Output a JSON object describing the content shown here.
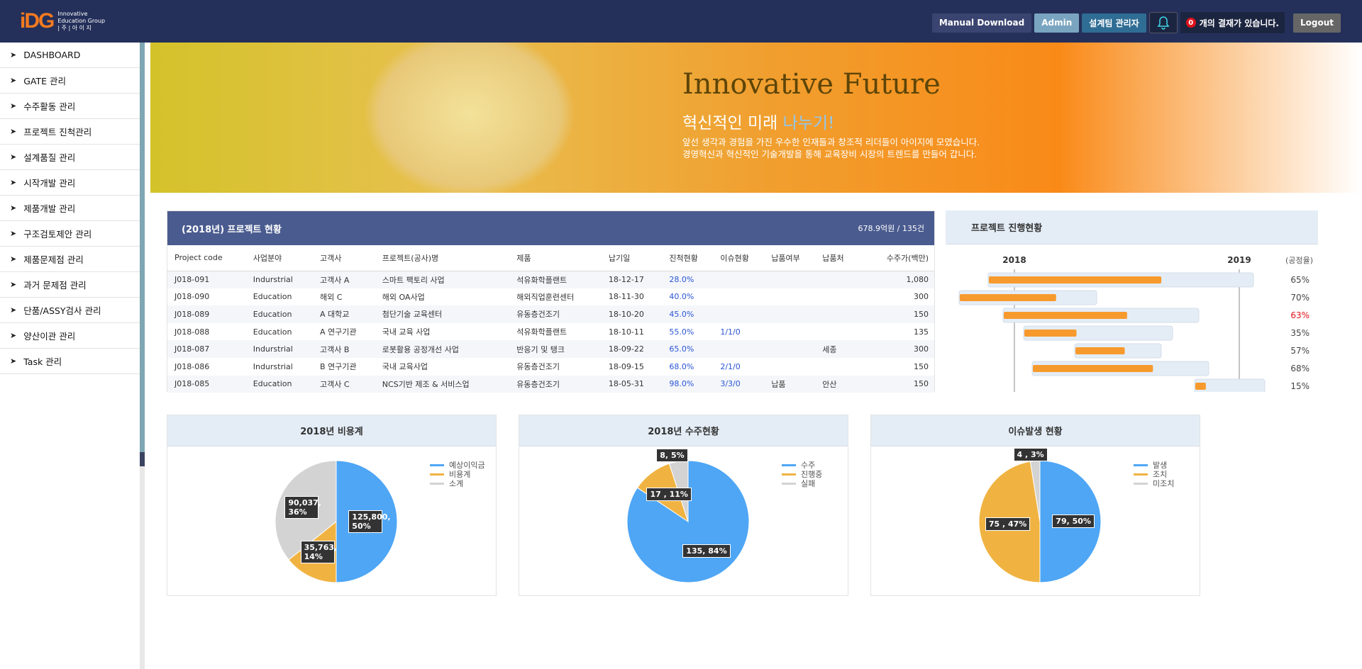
{
  "header": {
    "logo_mark": "iDG",
    "logo_line1": "Innovative",
    "logo_line2": "Education Group",
    "logo_line3": "| 주 | 아 이 지",
    "buttons": {
      "manual": "Manual Download",
      "admin": "Admin",
      "team": "설계팀 관리자",
      "logout": "Logout"
    },
    "approval_count": "0",
    "approval_text": "개의 결재가 있습니다.",
    "colors": {
      "bg": "#24305a",
      "accent": "#f47a20"
    }
  },
  "sidebar": {
    "items": [
      {
        "label": "DASHBOARD"
      },
      {
        "label": "GATE 관리"
      },
      {
        "label": "수주활동 관리"
      },
      {
        "label": "프로젝트 진척관리"
      },
      {
        "label": "설계품질 관리"
      },
      {
        "label": "시작개발 관리"
      },
      {
        "label": "제품개발 관리"
      },
      {
        "label": "구조검토제안 관리"
      },
      {
        "label": "제품문제점 관리"
      },
      {
        "label": "과거 문제점 관리"
      },
      {
        "label": "단품/ASSY검사 관리"
      },
      {
        "label": "양산이관 관리"
      },
      {
        "label": "Task 관리"
      }
    ]
  },
  "banner": {
    "title": "Innovative Future",
    "subtitle_a": "혁신적인 미래",
    "subtitle_b": "나누기!",
    "line1": "앞선 생각과 경험을 가진 우수한 인재들과 창조적 리더들이 아이지에 모였습니다.",
    "line2": "경영혁신과 혁신적인 기술개발을 통해 교육장비 시장의 트렌드를 만들어 갑니다."
  },
  "projects": {
    "title": "(2018년) 프로젝트 현황",
    "summary": "678.9억원 / 135건",
    "columns": [
      "Project code",
      "사업분야",
      "고객사",
      "프로젝트(공사)명",
      "제품",
      "납기일",
      "진척현황",
      "이슈현황",
      "납품여부",
      "납품처",
      "수주가(백만)"
    ],
    "rows": [
      [
        "J018-091",
        "Indurstrial",
        "고객사 A",
        "스마트 팩토리 사업",
        "석유화학플랜트",
        "18-12-17",
        "28.0%",
        "",
        "",
        "",
        "1,080"
      ],
      [
        "J018-090",
        "Education",
        "해외 C",
        "해외 OA사업",
        "해외직업훈련센터",
        "18-11-30",
        "40.0%",
        "",
        "",
        "",
        "300"
      ],
      [
        "J018-089",
        "Education",
        "A 대학교",
        "첨단기술 교육센터",
        "유동층건조기",
        "18-10-20",
        "45.0%",
        "",
        "",
        "",
        "150"
      ],
      [
        "J018-088",
        "Education",
        "A 연구기관",
        "국내 교육 사업",
        "석유화학플랜트",
        "18-10-11",
        "55.0%",
        "1/1/0",
        "",
        "",
        "135"
      ],
      [
        "J018-087",
        "Indurstrial",
        "고객사 B",
        "로봇활용 공정개선 사업",
        "반응기 및 탱크",
        "18-09-22",
        "65.0%",
        "",
        "",
        "세종",
        "300"
      ],
      [
        "J018-086",
        "Indurstrial",
        "B 연구기관",
        "국내 교육사업",
        "유동층건조기",
        "18-09-15",
        "68.0%",
        "2/1/0",
        "",
        "",
        "150"
      ],
      [
        "J018-085",
        "Education",
        "고객사 C",
        "NCS기반 제조 & 서비스업",
        "유동층건조기",
        "18-05-31",
        "98.0%",
        "3/3/0",
        "납품",
        "안산",
        "150"
      ]
    ]
  },
  "gantt": {
    "title": "프로젝트 진행현황",
    "year_a": "2018",
    "year_b": "2019",
    "rate_label": "(공정율)",
    "rows": [
      {
        "rate": "65%",
        "progress": 65
      },
      {
        "rate": "70%",
        "progress": 70
      },
      {
        "rate": "63%",
        "progress": 63,
        "alert": true
      },
      {
        "rate": "35%",
        "progress": 35
      },
      {
        "rate": "57%",
        "progress": 57
      },
      {
        "rate": "68%",
        "progress": 68
      },
      {
        "rate": "15%",
        "progress": 15
      }
    ],
    "colors": {
      "fill": "#f79a2e",
      "track": "#e4edf6",
      "alert": "#e0121a"
    }
  },
  "chart_data": [
    {
      "type": "pie",
      "title": "2018년 비용계",
      "legend": [
        "예상이익금",
        "비용계",
        "소계"
      ],
      "values": [
        125800,
        35763,
        90037
      ],
      "labels": [
        "125,800, 50%",
        "35,763, 14%",
        "90,037, 36%"
      ],
      "colors": [
        "#4ea6f5",
        "#f0b342",
        "#d3d3d3"
      ]
    },
    {
      "type": "pie",
      "title": "2018년 수주현황",
      "legend": [
        "수주",
        "진행중",
        "실패"
      ],
      "values": [
        135,
        17,
        8
      ],
      "labels": [
        "135, 84%",
        "17 , 11%",
        "8, 5%"
      ],
      "colors": [
        "#4ea6f5",
        "#f0b342",
        "#d3d3d3"
      ]
    },
    {
      "type": "pie",
      "title": "이슈발생 현황",
      "legend": [
        "발생",
        "조치",
        "미조치"
      ],
      "values": [
        79,
        75,
        4
      ],
      "labels": [
        "79, 50%",
        "75 , 47%",
        "4 , 3%"
      ],
      "colors": [
        "#4ea6f5",
        "#f0b342",
        "#d3d3d3"
      ]
    }
  ]
}
